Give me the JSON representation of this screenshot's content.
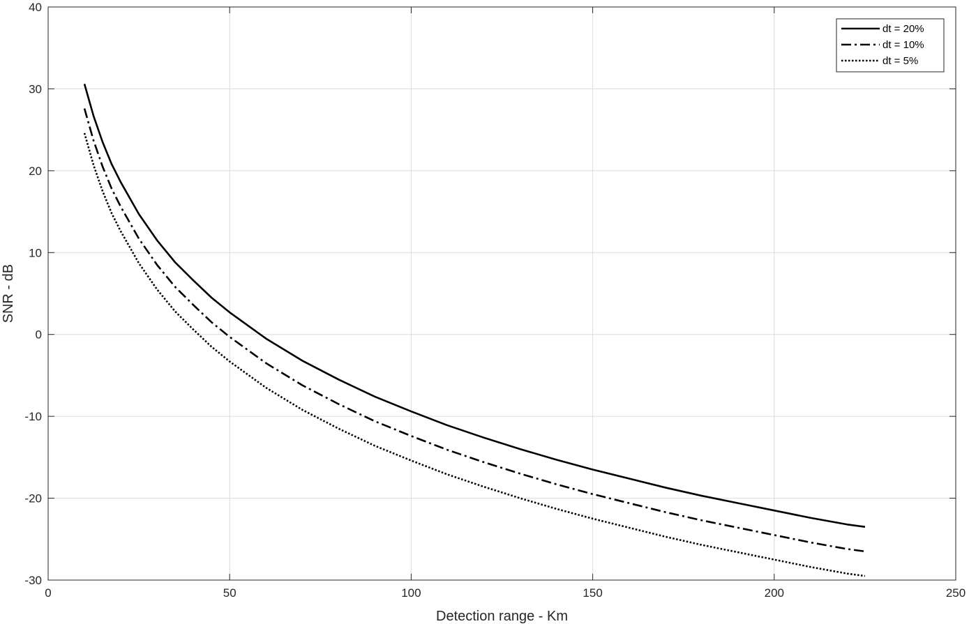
{
  "chart_data": {
    "type": "line",
    "title": "",
    "xlabel": "Detection range - Km",
    "ylabel": "SNR - dB",
    "xlim": [
      0,
      250
    ],
    "ylim": [
      -30,
      40
    ],
    "xticks": [
      0,
      50,
      100,
      150,
      200,
      250
    ],
    "yticks": [
      -30,
      -20,
      -10,
      0,
      10,
      20,
      30,
      40
    ],
    "grid": true,
    "legend_position": "top-right",
    "x": [
      10,
      12.5,
      15,
      17.5,
      20,
      25,
      30,
      35,
      40,
      45,
      50,
      60,
      70,
      80,
      90,
      100,
      110,
      120,
      130,
      140,
      150,
      160,
      170,
      180,
      190,
      200,
      210,
      220,
      225
    ],
    "series": [
      {
        "name": "dt = 20%",
        "line_style": "solid",
        "color": "#000000",
        "values": [
          30.6,
          26.7,
          23.5,
          20.8,
          18.6,
          14.7,
          11.5,
          8.8,
          6.6,
          4.5,
          2.7,
          -0.5,
          -3.2,
          -5.5,
          -7.6,
          -9.4,
          -11.1,
          -12.6,
          -14.0,
          -15.3,
          -16.5,
          -17.6,
          -18.7,
          -19.7,
          -20.6,
          -21.5,
          -22.4,
          -23.2,
          -23.5
        ]
      },
      {
        "name": "dt = 10%",
        "line_style": "dashdot",
        "color": "#000000",
        "values": [
          27.6,
          23.7,
          20.5,
          17.8,
          15.6,
          11.7,
          8.5,
          5.8,
          3.6,
          1.5,
          -0.3,
          -3.5,
          -6.2,
          -8.5,
          -10.6,
          -12.4,
          -14.1,
          -15.6,
          -17.0,
          -18.3,
          -19.5,
          -20.6,
          -21.7,
          -22.7,
          -23.6,
          -24.5,
          -25.4,
          -26.2,
          -26.5
        ]
      },
      {
        "name": "dt = 5%",
        "line_style": "dotted",
        "color": "#000000",
        "values": [
          24.6,
          20.7,
          17.5,
          14.8,
          12.6,
          8.7,
          5.5,
          2.8,
          0.6,
          -1.5,
          -3.3,
          -6.5,
          -9.2,
          -11.5,
          -13.6,
          -15.4,
          -17.1,
          -18.6,
          -20.0,
          -21.3,
          -22.5,
          -23.6,
          -24.7,
          -25.7,
          -26.6,
          -27.5,
          -28.4,
          -29.2,
          -29.5
        ]
      }
    ]
  }
}
